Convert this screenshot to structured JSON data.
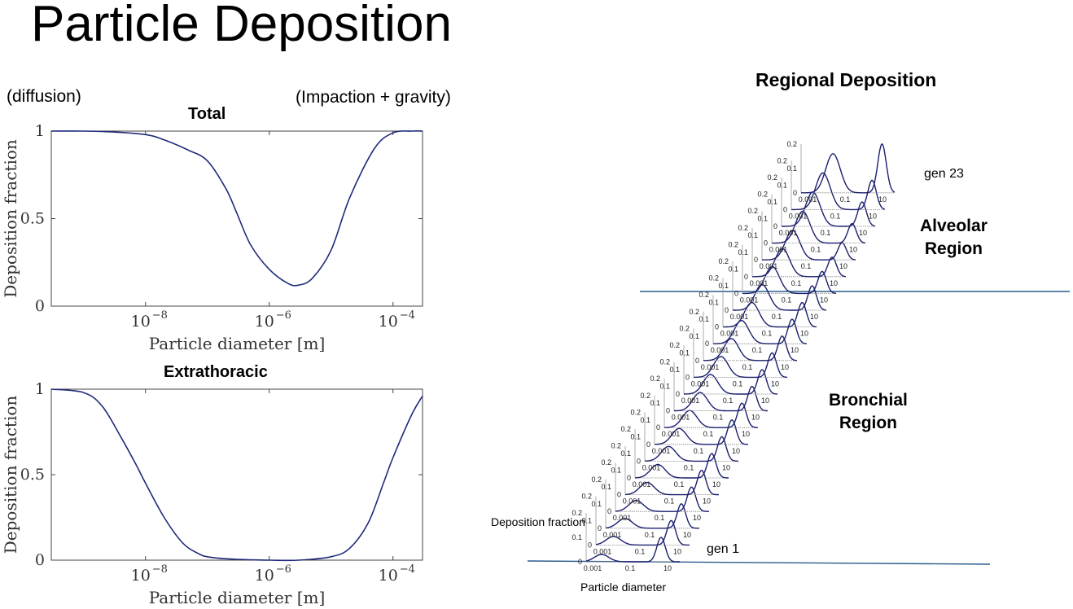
{
  "page": {
    "title": "Particle Deposition",
    "note_left": "(diffusion)",
    "note_right": "(Impaction + gravity)"
  },
  "chart_data": [
    {
      "type": "line",
      "title": "Total",
      "xlabel": "Particle diameter [m]",
      "ylabel": "Deposition fraction",
      "x_scale": "log",
      "xlim": [
        3e-10,
        0.0003
      ],
      "ylim": [
        0,
        1
      ],
      "xticks": [
        1e-08,
        1e-06,
        0.0001
      ],
      "xtick_labels": [
        "10",
        "10",
        "10"
      ],
      "xtick_exponents": [
        "−8",
        "−6",
        "−4"
      ],
      "yticks": [
        0,
        0.5,
        1
      ],
      "ytick_labels": [
        "0",
        "0.5",
        "1"
      ],
      "series": [
        {
          "color": "#1f2a7a",
          "x": [
            3e-10,
            1e-09,
            3e-09,
            1e-08,
            2e-08,
            5e-08,
            1e-07,
            2e-07,
            3e-07,
            5e-07,
            1e-06,
            2e-06,
            3e-06,
            5e-06,
            1e-05,
            2e-05,
            5e-05,
            0.0001,
            0.0002,
            0.0003
          ],
          "y": [
            1.0,
            1.0,
            0.995,
            0.98,
            0.95,
            0.89,
            0.83,
            0.67,
            0.53,
            0.35,
            0.21,
            0.13,
            0.12,
            0.16,
            0.32,
            0.62,
            0.9,
            0.99,
            1.0,
            1.0
          ]
        }
      ]
    },
    {
      "type": "line",
      "title": "Extrathoracic",
      "xlabel": "Particle diameter [m]",
      "ylabel": "Deposition fraction",
      "x_scale": "log",
      "xlim": [
        3e-10,
        0.0003
      ],
      "ylim": [
        0,
        1
      ],
      "xticks": [
        1e-08,
        1e-06,
        0.0001
      ],
      "xtick_labels": [
        "10",
        "10",
        "10"
      ],
      "xtick_exponents": [
        "−8",
        "−6",
        "−4"
      ],
      "yticks": [
        0,
        0.5,
        1
      ],
      "ytick_labels": [
        "0",
        "0.5",
        "1"
      ],
      "series": [
        {
          "color": "#1f2a7a",
          "x": [
            3e-10,
            1e-09,
            2e-09,
            4e-09,
            7e-09,
            1e-08,
            2e-08,
            4e-08,
            7e-08,
            1e-07,
            2e-07,
            5e-07,
            1e-06,
            3e-06,
            1e-05,
            2e-05,
            4e-05,
            7e-05,
            0.0001,
            0.0002,
            0.0003
          ],
          "y": [
            1.0,
            0.98,
            0.9,
            0.72,
            0.56,
            0.45,
            0.25,
            0.1,
            0.04,
            0.02,
            0.008,
            0.002,
            0.0,
            0.0,
            0.02,
            0.07,
            0.22,
            0.45,
            0.6,
            0.85,
            0.96
          ]
        }
      ]
    },
    {
      "type": "line",
      "title": "Regional Deposition",
      "description_layout": "waterfall",
      "xlabel": "Particle diameter",
      "ylabel": "Deposition fraction",
      "x_scale": "log",
      "xticks": [
        0.001,
        0.1,
        10
      ],
      "xtick_labels": [
        "0.001",
        "0.1",
        "10"
      ],
      "yticks": [
        0,
        0.1,
        0.2
      ],
      "ytick_labels": [
        "0",
        "0.1",
        "0.2"
      ],
      "generation_count": 23,
      "first_label": "gen 1",
      "last_label": "gen 23",
      "regions": [
        {
          "name": "Alveolar Region",
          "line1": "Alveolar",
          "line2": "Region"
        },
        {
          "name": "Bronchial Region",
          "line1": "Bronchial",
          "line2": "Region"
        }
      ],
      "series_color": "#1a1f6e",
      "divider_color": "#2a5b8c",
      "shape_by_generation": {
        "fine_peak_height": [
          0.03,
          0.035,
          0.04,
          0.045,
          0.05,
          0.055,
          0.06,
          0.065,
          0.07,
          0.075,
          0.08,
          0.085,
          0.09,
          0.095,
          0.1,
          0.105,
          0.11,
          0.115,
          0.12,
          0.13,
          0.14,
          0.15,
          0.16
        ],
        "coarse_peak_height": [
          0.1,
          0.1,
          0.1,
          0.1,
          0.1,
          0.1,
          0.1,
          0.1,
          0.1,
          0.1,
          0.1,
          0.1,
          0.1,
          0.1,
          0.1,
          0.1,
          0.09,
          0.08,
          0.07,
          0.08,
          0.1,
          0.12,
          0.2
        ]
      }
    }
  ]
}
